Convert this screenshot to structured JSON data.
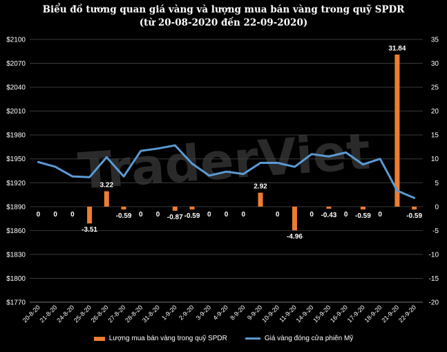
{
  "chart_data": {
    "type": "bar+line",
    "title": "Biểu đồ tương quan giá vàng và lượng mua bán vàng trong quỹ SPDR",
    "subtitle": "(từ 20-08-2020 đến 22-09-2020)",
    "watermark": "TraderViet",
    "categories": [
      "20-8-20",
      "21-8-20",
      "24-8-20",
      "25-8-20",
      "26-8-20",
      "27-8-20",
      "28-8-20",
      "31-8-20",
      "1-9-20",
      "2-9-20",
      "3-9-20",
      "4-9-20",
      "8-9-20",
      "9-9-20",
      "10-9-20",
      "11-9-20",
      "14-9-20",
      "15-9-20",
      "16-9-20",
      "17-9-20",
      "18-9-20",
      "21-9-20",
      "22-9-20"
    ],
    "series": [
      {
        "name": "Lượng mua bán vàng trong quỹ SPDR",
        "type": "bar",
        "axis": "right",
        "color": "#ED7D31",
        "values": [
          0,
          0,
          0,
          -3.51,
          3.22,
          -0.59,
          0,
          0,
          -0.87,
          -0.59,
          0,
          0,
          0,
          2.92,
          0,
          -4.96,
          0,
          -0.43,
          0,
          -0.59,
          0,
          31.84,
          -0.59
        ],
        "labels": [
          "0",
          "0",
          "0",
          "-3.51",
          "3.22",
          "-0.59",
          "0",
          "0",
          "-0.87",
          "-0.59",
          "0",
          "0",
          "0",
          "2.92",
          "0",
          "-4.96",
          "0",
          "-0.43",
          "0",
          "-0.59",
          "0",
          "31.84",
          "-0.59"
        ]
      },
      {
        "name": "Giá vàng đóng cửa phiên Mỹ",
        "type": "line",
        "axis": "left",
        "color": "#5B9BD5",
        "values": [
          1946,
          1940,
          1928,
          1927,
          1952,
          1928,
          1960,
          1963,
          1967,
          1944,
          1929,
          1934,
          1931,
          1945,
          1945,
          1940,
          1956,
          1953,
          1958,
          1943,
          1950,
          1910,
          1901
        ]
      }
    ],
    "left_axis": {
      "min": 1770,
      "max": 2100,
      "step": 30,
      "prefix": "$",
      "tick_labels": [
        "$2100",
        "$2070",
        "$2040",
        "$2010",
        "$1980",
        "$1950",
        "$1920",
        "$1890",
        "$1860",
        "$1830",
        "$1800",
        "$1770"
      ]
    },
    "right_axis": {
      "min": -20,
      "max": 35,
      "step": 5,
      "tick_labels": [
        "35",
        "30",
        "25",
        "20",
        "15",
        "10",
        "5",
        "0",
        "-5",
        "-10",
        "-15",
        "-20"
      ]
    },
    "grid": true,
    "legend_position": "bottom"
  }
}
